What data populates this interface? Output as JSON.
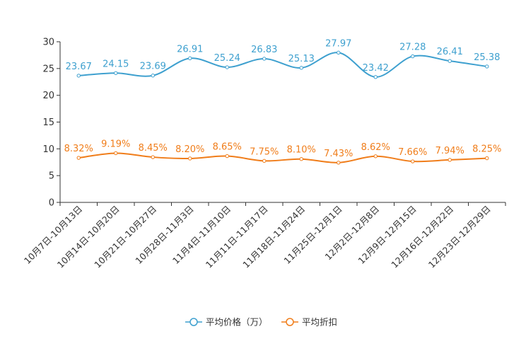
{
  "chart_data": {
    "type": "line",
    "title": "",
    "xlabel": "",
    "ylabel": "",
    "ylim": [
      0,
      30
    ],
    "yticks": [
      0,
      5,
      10,
      15,
      20,
      25,
      30
    ],
    "grid": false,
    "legend_position": "bottom",
    "categories": [
      "10月7日-10月13日",
      "10月14日-10月20日",
      "10月21日-10月27日",
      "10月28日-11月3日",
      "11月4日-11月10日",
      "11月11日-11月17日",
      "11月18日-11月24日",
      "11月25日-12月1日",
      "12月2日-12月8日",
      "12月9日-12月15日",
      "12月16日-12月22日",
      "12月23日-12月29日"
    ],
    "series": [
      {
        "name": "平均价格（万）",
        "color": "#3ea0cf",
        "values": [
          23.67,
          24.15,
          23.69,
          26.91,
          25.24,
          26.83,
          25.13,
          27.97,
          23.42,
          27.28,
          26.41,
          25.38
        ],
        "labels": [
          "23.67",
          "24.15",
          "23.69",
          "26.91",
          "25.24",
          "26.83",
          "25.13",
          "27.97",
          "23.42",
          "27.28",
          "26.41",
          "25.38"
        ]
      },
      {
        "name": "平均折扣",
        "color": "#f07d1a",
        "values": [
          8.32,
          9.19,
          8.45,
          8.2,
          8.65,
          7.75,
          8.1,
          7.43,
          8.62,
          7.66,
          7.94,
          8.25
        ],
        "labels": [
          "8.32%",
          "9.19%",
          "8.45%",
          "8.20%",
          "8.65%",
          "7.75%",
          "8.10%",
          "7.43%",
          "8.62%",
          "7.66%",
          "7.94%",
          "8.25%"
        ]
      }
    ]
  }
}
